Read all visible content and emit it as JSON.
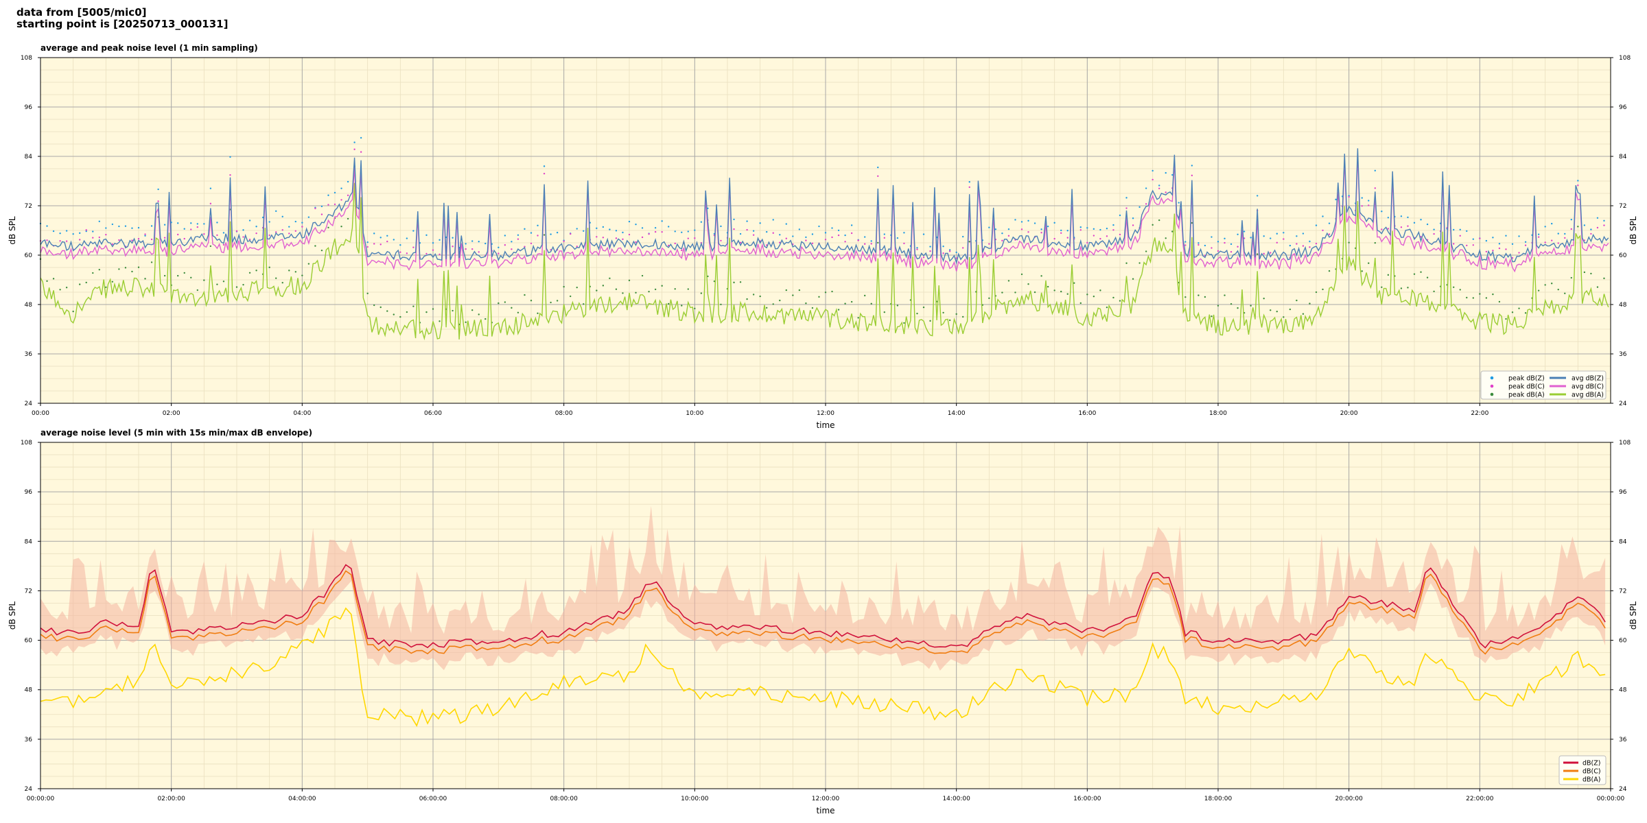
{
  "header": {
    "line1": "data from [5005/mic0]",
    "line2": "starting point is [20250713_000131]"
  },
  "chart_data": [
    {
      "type": "line",
      "title": "average and peak noise level (1 min sampling)",
      "xlabel": "time",
      "ylabel": "dB SPL",
      "ylabel_right": "dB SPL",
      "xlim_hours": [
        0,
        24
      ],
      "ylim": [
        24,
        108
      ],
      "yticks": [
        24,
        36,
        48,
        60,
        72,
        84,
        96,
        108
      ],
      "xtick_labels": [
        "00:00",
        "02:00",
        "04:00",
        "06:00",
        "08:00",
        "10:00",
        "12:00",
        "14:00",
        "16:00",
        "18:00",
        "20:00",
        "22:00"
      ],
      "background": "#fff8dc",
      "grid": true,
      "legend_position": "lower-right",
      "legend_columns": 2,
      "series": [
        {
          "name": "peak dB(Z)",
          "kind": "scatter",
          "color": "#1f9be3"
        },
        {
          "name": "peak dB(C)",
          "kind": "scatter",
          "color": "#e040c8"
        },
        {
          "name": "peak dB(A)",
          "kind": "scatter",
          "color": "#3c8c3c"
        },
        {
          "name": "avg dB(Z)",
          "kind": "line",
          "color": "#4a7fb5"
        },
        {
          "name": "avg dB(C)",
          "kind": "line",
          "color": "#e060d0"
        },
        {
          "name": "avg dB(A)",
          "kind": "line",
          "color": "#9acd32"
        }
      ],
      "profile_hours": [
        0,
        0.5,
        1,
        1.5,
        2,
        2.5,
        3,
        3.5,
        4,
        4.5,
        4.8,
        5,
        6,
        7,
        8,
        9,
        10,
        11,
        12,
        13,
        14,
        15,
        16,
        16.7,
        17,
        17.3,
        17.5,
        18,
        19,
        19.5,
        20,
        20.5,
        21,
        22,
        22.5,
        23,
        23.5,
        24
      ],
      "avg_z_profile": [
        63,
        62,
        63,
        63,
        63,
        64,
        64,
        64,
        65,
        70,
        75,
        60,
        60,
        60,
        62,
        63,
        62,
        63,
        62,
        61,
        59,
        64,
        62,
        64,
        75,
        74,
        61,
        60,
        60,
        61,
        71,
        66,
        65,
        60,
        59,
        62,
        64,
        64
      ],
      "avg_a_profile": [
        52,
        46,
        52,
        52,
        50,
        50,
        51,
        52,
        53,
        62,
        66,
        43,
        42,
        42,
        46,
        49,
        46,
        46,
        45,
        43,
        42,
        50,
        45,
        48,
        62,
        60,
        45,
        43,
        43,
        44,
        58,
        50,
        49,
        44,
        43,
        47,
        50,
        49
      ]
    },
    {
      "type": "line",
      "title": "average noise level (5 min with 15s min/max dB envelope)",
      "xlabel": "time",
      "ylabel": "dB SPL",
      "ylabel_right": "dB SPL",
      "xlim_hours": [
        0,
        24
      ],
      "ylim": [
        24,
        108
      ],
      "yticks": [
        24,
        36,
        48,
        60,
        72,
        84,
        96,
        108
      ],
      "xtick_labels": [
        "00:00:00",
        "02:00:00",
        "04:00:00",
        "06:00:00",
        "08:00:00",
        "10:00:00",
        "12:00:00",
        "14:00:00",
        "16:00:00",
        "18:00:00",
        "20:00:00",
        "22:00:00",
        "00:00:00"
      ],
      "background": "#fff8dc",
      "grid": true,
      "legend_position": "lower-right",
      "envelope_color": "#f4b4a0",
      "series": [
        {
          "name": "dB(Z)",
          "color": "#d0103a"
        },
        {
          "name": "dB(C)",
          "color": "#f07d10"
        },
        {
          "name": "dB(A)",
          "color": "#ffd700"
        }
      ],
      "profile_hours": [
        0,
        0.5,
        1,
        1.5,
        1.7,
        2,
        3,
        3.5,
        4,
        4.5,
        4.7,
        5,
        6,
        7,
        8,
        9,
        9.3,
        10,
        11,
        12,
        13,
        14,
        15,
        16,
        16.7,
        17,
        17.3,
        17.5,
        18,
        19,
        19.5,
        20,
        20.5,
        21,
        21.2,
        22,
        22.5,
        23,
        23.5,
        24
      ],
      "z_profile": [
        62,
        62,
        64,
        63,
        79,
        62,
        63,
        65,
        66,
        74,
        80,
        60,
        59,
        60,
        62,
        67,
        75,
        64,
        63,
        62,
        60,
        58,
        66,
        62,
        65,
        76,
        74,
        62,
        60,
        60,
        61,
        71,
        69,
        67,
        78,
        59,
        60,
        64,
        70,
        64
      ],
      "a_profile": [
        47,
        44,
        49,
        50,
        60,
        50,
        52,
        54,
        58,
        65,
        69,
        42,
        41,
        43,
        50,
        52,
        58,
        47,
        47,
        46,
        44,
        42,
        52,
        46,
        47,
        58,
        56,
        45,
        44,
        45,
        46,
        57,
        52,
        50,
        58,
        46,
        45,
        50,
        56,
        52
      ]
    }
  ]
}
